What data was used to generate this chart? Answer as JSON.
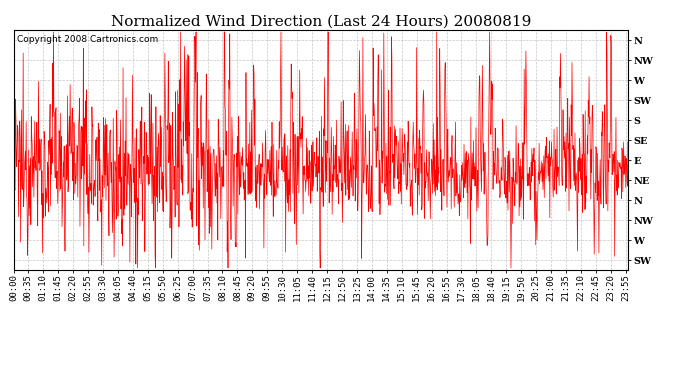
{
  "title": "Normalized Wind Direction (Last 24 Hours) 20080819",
  "copyright": "Copyright 2008 Cartronics.com",
  "line_color": "#ff0000",
  "bg_color": "#ffffff",
  "plot_bg_color": "#ffffff",
  "grid_color": "#b0b0b0",
  "ytick_labels": [
    "N",
    "NW",
    "W",
    "SW",
    "S",
    "SE",
    "E",
    "NE",
    "N",
    "NW",
    "W",
    "SW"
  ],
  "ytick_values": [
    11,
    10,
    9,
    8,
    7,
    6,
    5,
    4,
    3,
    2,
    1,
    0
  ],
  "ymin": -0.5,
  "ymax": 11.5,
  "title_fontsize": 11,
  "copyright_fontsize": 6.5,
  "tick_fontsize": 7,
  "xtick_interval_min": 35,
  "n_points": 1440
}
